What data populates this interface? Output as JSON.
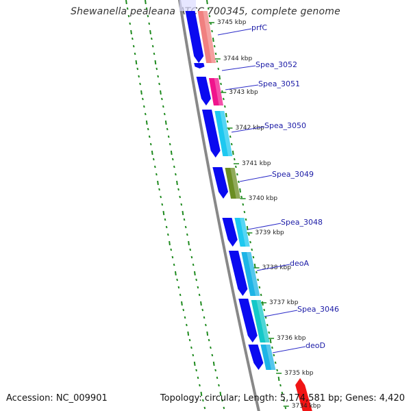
{
  "title": "Shewanella pealeana ATCC 700345, complete genome",
  "accession_text": "Accession: NC_009901",
  "topology_text": "Topology: circular; Length: 5,174,581 bp; Genes: 4,420",
  "colors": {
    "backbone": "#888888",
    "strand_minus": "#0a0af0",
    "dotted_track": "#1e8a1e",
    "label_text": "#1a1aa6",
    "leader_line": "#2a2ac8"
  },
  "ticks": [
    {
      "label": "3745 kbp"
    },
    {
      "label": "3744 kbp"
    },
    {
      "label": "3743 kbp"
    },
    {
      "label": "3742 kbp"
    },
    {
      "label": "3741 kbp"
    },
    {
      "label": "3740 kbp"
    },
    {
      "label": "3739 kbp"
    },
    {
      "label": "3738 kbp"
    },
    {
      "label": "3737 kbp"
    },
    {
      "label": "3736 kbp"
    },
    {
      "label": "3735 kbp"
    },
    {
      "label": "3734 kbp"
    }
  ],
  "genes": [
    {
      "label": "prfC",
      "color": "#f08080"
    },
    {
      "label": "Spea_3052",
      "color": ""
    },
    {
      "label": "Spea_3051",
      "color": "#f0148c"
    },
    {
      "label": "Spea_3050",
      "color": "#1ec8f0"
    },
    {
      "label": "Spea_3049",
      "color": "#6b8e23"
    },
    {
      "label": "Spea_3048",
      "color": "#1ec8f0"
    },
    {
      "label": "deoA",
      "color": "#1eb4e6"
    },
    {
      "label": "Spea_3046",
      "color": "#14c8c8"
    },
    {
      "label": "deoD",
      "color": "#1eb4e6"
    },
    {
      "label": "",
      "color": "#f01414"
    }
  ]
}
